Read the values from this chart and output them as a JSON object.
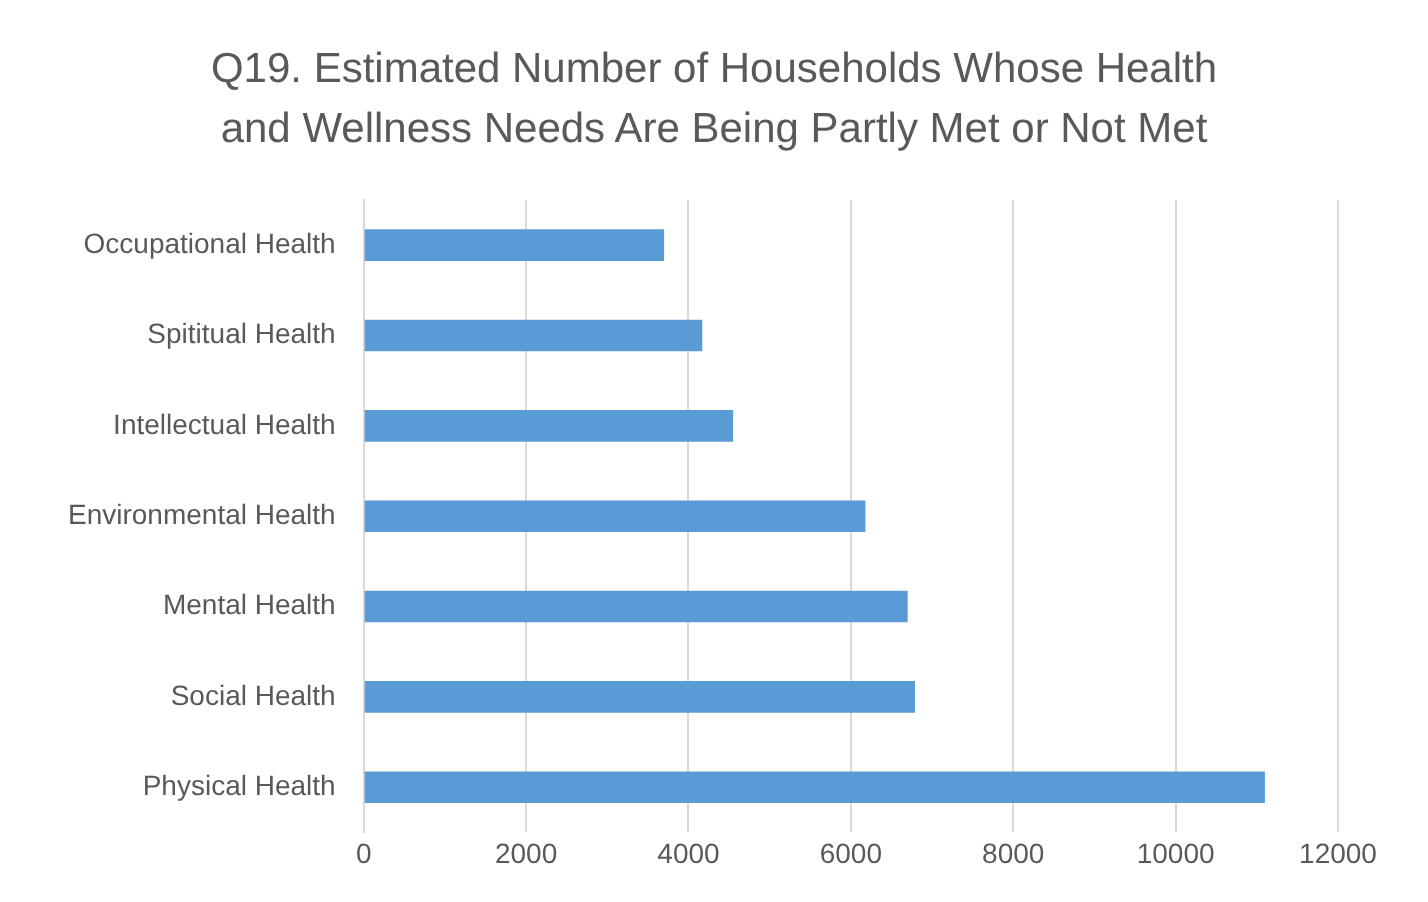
{
  "chart_data": {
    "type": "bar",
    "orientation": "horizontal",
    "title": "Q19. Estimated Number of Households Whose Health and Wellness Needs Are Being Partly Met or Not Met",
    "categories": [
      "Occupational Health",
      "Spititual Health",
      "Intellectual Health",
      "Environmental Health",
      "Mental Health",
      "Social Health",
      "Physical Health"
    ],
    "values": [
      3700,
      4170,
      4550,
      6180,
      6700,
      6790,
      11100
    ],
    "color": "#5b9bd5",
    "xlim": [
      0,
      12000
    ],
    "xticks": [
      0,
      2000,
      4000,
      6000,
      8000,
      10000,
      12000
    ],
    "grid": "x",
    "legend": false
  }
}
